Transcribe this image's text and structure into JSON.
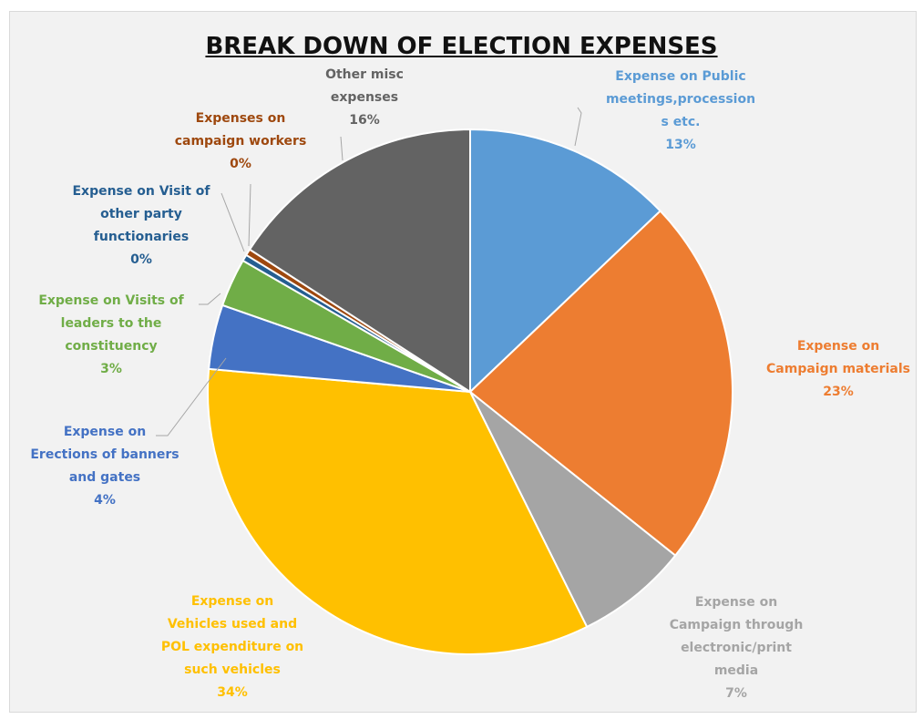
{
  "chart_data": {
    "type": "pie",
    "title": "BREAK DOWN OF ELECTION EXPENSES",
    "slices": [
      {
        "label_lines": [
          "Expense on Public",
          "meetings,procession",
          "s etc."
        ],
        "percent_label": "13%",
        "value": 13,
        "color": "#5b9bd5"
      },
      {
        "label_lines": [
          "Expense on",
          "Campaign materials"
        ],
        "percent_label": "23%",
        "value": 23,
        "color": "#ed7d31"
      },
      {
        "label_lines": [
          "Expense on",
          "Campaign through",
          "electronic/print",
          "media"
        ],
        "percent_label": "7%",
        "value": 7,
        "color": "#a5a5a5"
      },
      {
        "label_lines": [
          "Expense on",
          "Vehicles used and",
          "POL expenditure on",
          "such vehicles"
        ],
        "percent_label": "34%",
        "value": 34,
        "color": "#ffc000"
      },
      {
        "label_lines": [
          "Expense on",
          "Erections of banners",
          "and gates"
        ],
        "percent_label": "4%",
        "value": 4,
        "color": "#4472c4"
      },
      {
        "label_lines": [
          "Expense on Visits of",
          "leaders to the",
          "constituency"
        ],
        "percent_label": "3%",
        "value": 3,
        "color": "#70ad47"
      },
      {
        "label_lines": [
          "Expense on Visit of",
          "other party",
          "functionaries"
        ],
        "percent_label": "0%",
        "value": 0.4,
        "color": "#255e91"
      },
      {
        "label_lines": [
          "Expenses on",
          "campaign workers"
        ],
        "percent_label": "0%",
        "value": 0.4,
        "color": "#9e480e"
      },
      {
        "label_lines": [
          "Other misc",
          "expenses"
        ],
        "percent_label": "16%",
        "value": 16,
        "color": "#636363"
      }
    ],
    "legend": "none",
    "data_labels": "outside with leader lines"
  }
}
